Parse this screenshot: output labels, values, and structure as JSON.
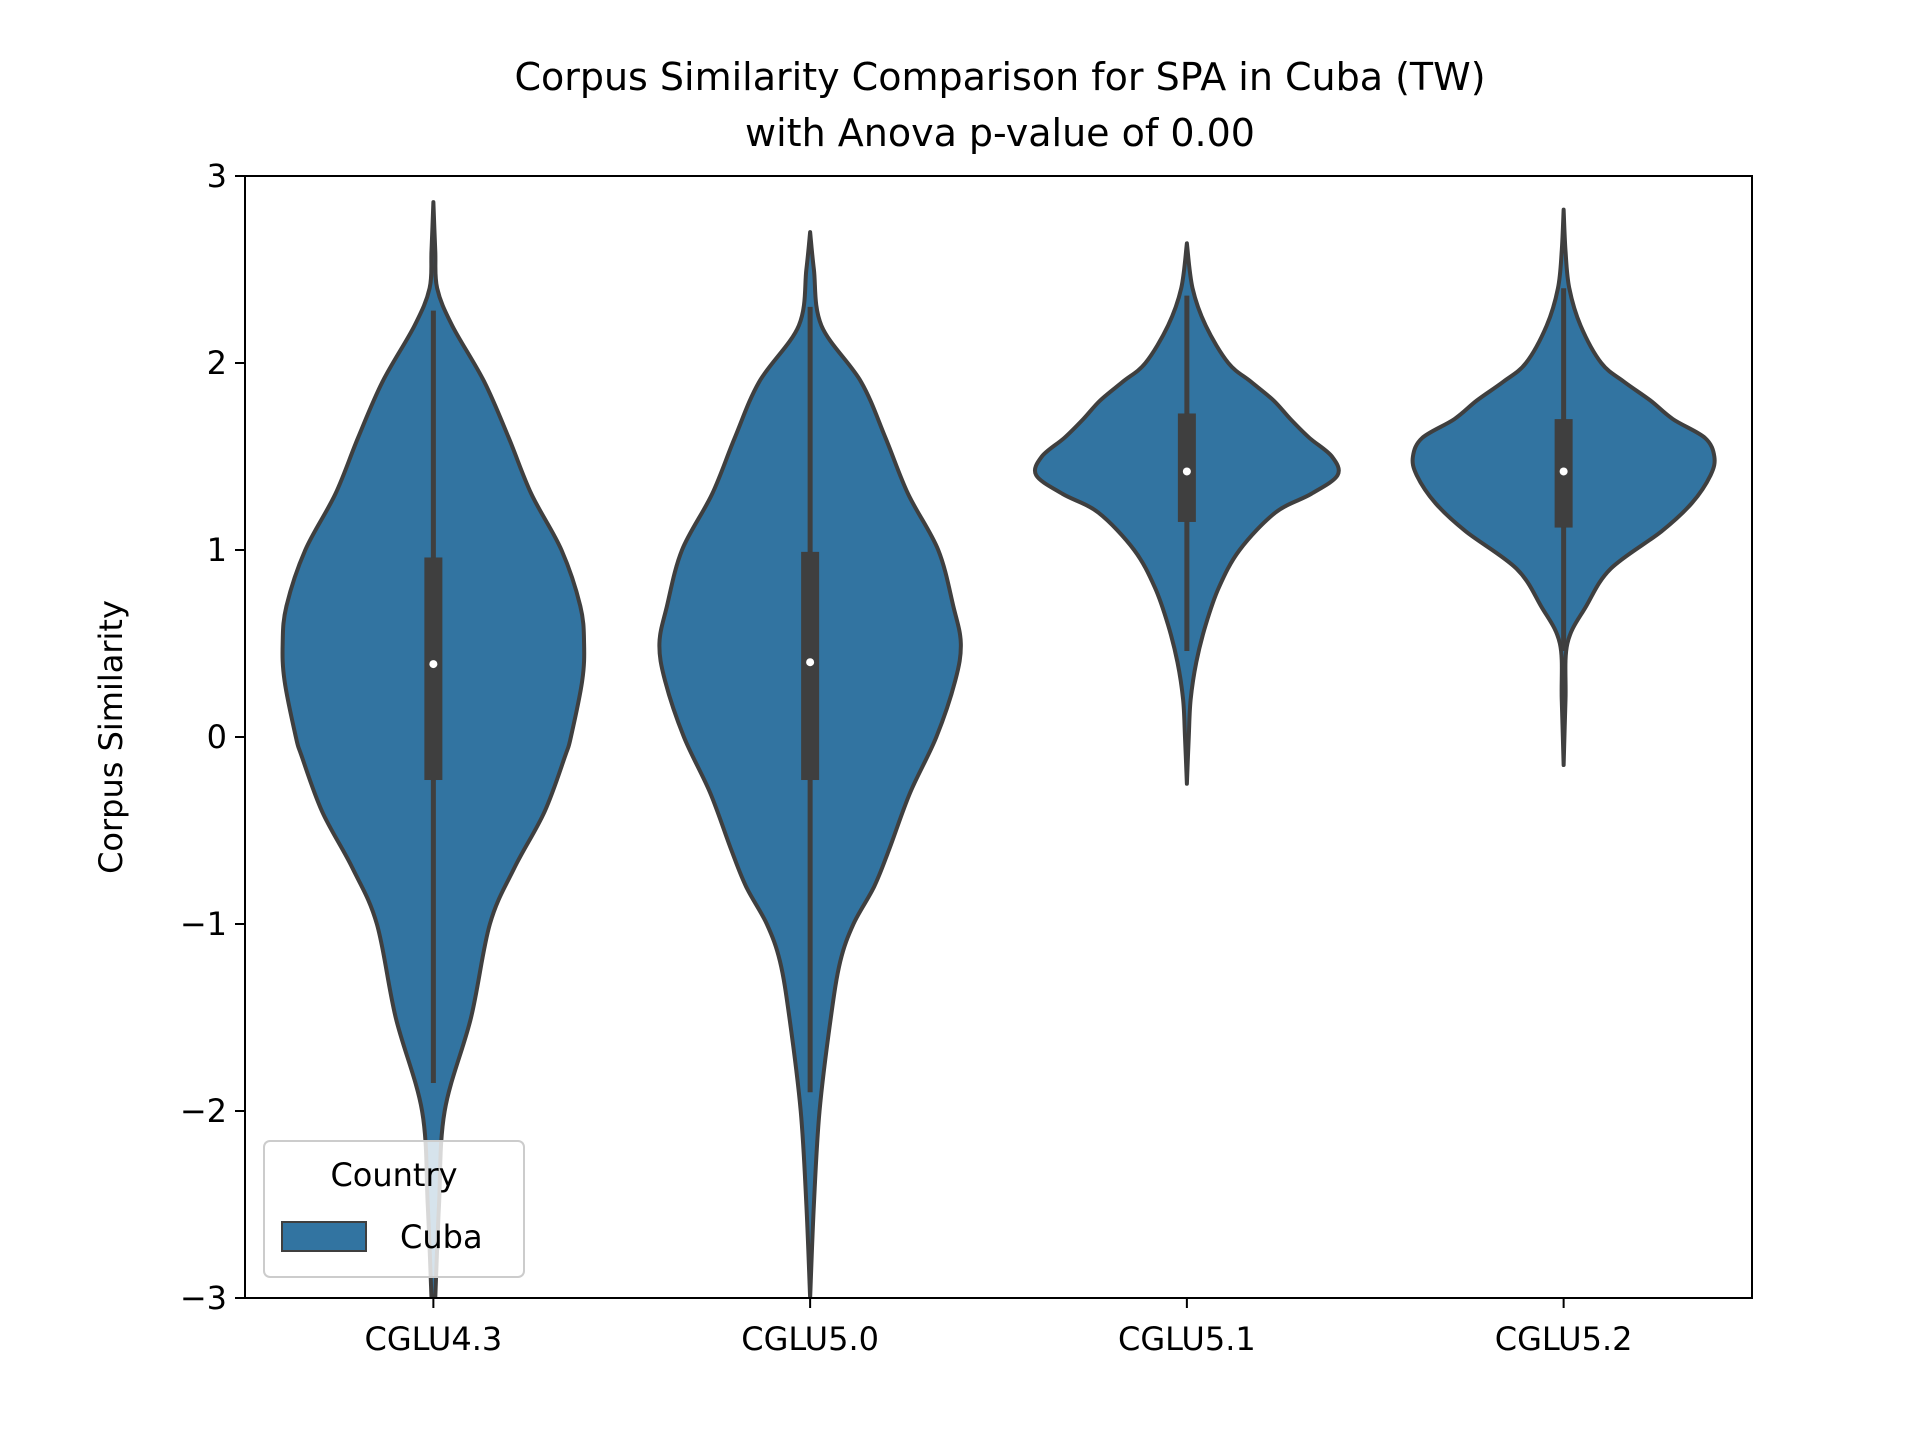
{
  "chart_data": {
    "type": "violin",
    "title_line1": "Corpus Similarity Comparison for SPA in Cuba (TW)",
    "title_line2": "with Anova p-value of 0.00",
    "xlabel": "",
    "ylabel": "Corpus Similarity",
    "ylim": [
      -3,
      3
    ],
    "yticks": [
      -3,
      -2,
      -1,
      0,
      1,
      2,
      3
    ],
    "ytick_labels": [
      "−3",
      "−2",
      "−1",
      "0",
      "1",
      "2",
      "3"
    ],
    "categories": [
      "CGLU4.3",
      "CGLU5.0",
      "CGLU5.1",
      "CGLU5.2"
    ],
    "grid": false,
    "legend": {
      "title": "Country",
      "entries": [
        "Cuba"
      ],
      "placement": "lower-left"
    },
    "colors": {
      "violin_fill": "#3274A1",
      "violin_edge": "#3F3F3F",
      "box": "#3F3F3F",
      "median": "#FFFFFF"
    },
    "series": [
      {
        "name": "Cuba",
        "violins": [
          {
            "category": "CGLU4.3",
            "median": 0.39,
            "q1": -0.23,
            "q3": 0.96,
            "whisker_low": -1.85,
            "whisker_high": 2.28,
            "min": -3.0,
            "max": 2.86,
            "density_profile": [
              [
                -3.0,
                0.01
              ],
              [
                -2.5,
                0.03
              ],
              [
                -2.0,
                0.06
              ],
              [
                -1.5,
                0.2
              ],
              [
                -1.0,
                0.3
              ],
              [
                -0.7,
                0.43
              ],
              [
                -0.4,
                0.59
              ],
              [
                -0.1,
                0.7
              ],
              [
                0.0,
                0.73
              ],
              [
                0.3,
                0.79
              ],
              [
                0.5,
                0.8
              ],
              [
                0.7,
                0.78
              ],
              [
                1.0,
                0.68
              ],
              [
                1.3,
                0.52
              ],
              [
                1.6,
                0.4
              ],
              [
                1.9,
                0.27
              ],
              [
                2.2,
                0.1
              ],
              [
                2.4,
                0.02
              ],
              [
                2.6,
                0.01
              ],
              [
                2.86,
                0.0
              ]
            ]
          },
          {
            "category": "CGLU5.0",
            "median": 0.4,
            "q1": -0.23,
            "q3": 0.99,
            "whisker_low": -1.9,
            "whisker_high": 2.3,
            "min": -3.0,
            "max": 2.7,
            "density_profile": [
              [
                -3.0,
                0.0
              ],
              [
                -2.5,
                0.02
              ],
              [
                -2.0,
                0.05
              ],
              [
                -1.5,
                0.11
              ],
              [
                -1.2,
                0.16
              ],
              [
                -1.0,
                0.23
              ],
              [
                -0.8,
                0.34
              ],
              [
                -0.6,
                0.42
              ],
              [
                -0.3,
                0.53
              ],
              [
                0.0,
                0.67
              ],
              [
                0.3,
                0.77
              ],
              [
                0.5,
                0.8
              ],
              [
                0.7,
                0.76
              ],
              [
                1.0,
                0.68
              ],
              [
                1.3,
                0.52
              ],
              [
                1.6,
                0.4
              ],
              [
                1.9,
                0.27
              ],
              [
                2.2,
                0.06
              ],
              [
                2.5,
                0.02
              ],
              [
                2.7,
                0.0
              ]
            ]
          },
          {
            "category": "CGLU5.1",
            "median": 1.42,
            "q1": 1.15,
            "q3": 1.73,
            "whisker_low": 0.46,
            "whisker_high": 2.36,
            "min": -0.25,
            "max": 2.64,
            "density_profile": [
              [
                -0.25,
                0.0
              ],
              [
                0.0,
                0.01
              ],
              [
                0.2,
                0.02
              ],
              [
                0.4,
                0.05
              ],
              [
                0.6,
                0.1
              ],
              [
                0.8,
                0.17
              ],
              [
                1.0,
                0.28
              ],
              [
                1.2,
                0.47
              ],
              [
                1.3,
                0.66
              ],
              [
                1.4,
                0.8
              ],
              [
                1.5,
                0.77
              ],
              [
                1.6,
                0.65
              ],
              [
                1.7,
                0.55
              ],
              [
                1.8,
                0.46
              ],
              [
                1.9,
                0.34
              ],
              [
                2.0,
                0.22
              ],
              [
                2.2,
                0.1
              ],
              [
                2.4,
                0.03
              ],
              [
                2.64,
                0.0
              ]
            ]
          },
          {
            "category": "CGLU5.2",
            "median": 1.42,
            "q1": 1.12,
            "q3": 1.7,
            "whisker_low": 0.46,
            "whisker_high": 2.4,
            "min": -0.15,
            "max": 2.82,
            "density_profile": [
              [
                -0.15,
                0.0
              ],
              [
                0.2,
                0.01
              ],
              [
                0.5,
                0.02
              ],
              [
                0.7,
                0.12
              ],
              [
                0.9,
                0.25
              ],
              [
                1.1,
                0.52
              ],
              [
                1.25,
                0.68
              ],
              [
                1.4,
                0.78
              ],
              [
                1.5,
                0.8
              ],
              [
                1.6,
                0.75
              ],
              [
                1.7,
                0.58
              ],
              [
                1.8,
                0.46
              ],
              [
                1.9,
                0.32
              ],
              [
                2.0,
                0.2
              ],
              [
                2.2,
                0.09
              ],
              [
                2.4,
                0.03
              ],
              [
                2.6,
                0.01
              ],
              [
                2.82,
                0.0
              ]
            ]
          }
        ]
      }
    ]
  }
}
